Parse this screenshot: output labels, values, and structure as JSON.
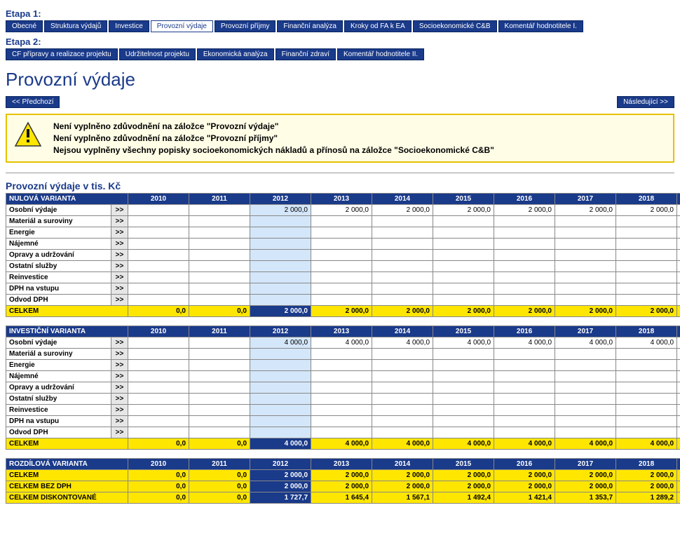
{
  "stage1": {
    "label": "Etapa 1:",
    "tabs": [
      "Obecné",
      "Struktura výdajů",
      "Investice",
      "Provozní výdaje",
      "Provozní příjmy",
      "Finanční analýza",
      "Kroky od FA k EA",
      "Socioekonomické C&B",
      "Komentář hodnotitele I."
    ],
    "activeIndex": 3
  },
  "stage2": {
    "label": "Etapa 2:",
    "tabs": [
      "CF přípravy a realizace projektu",
      "Udržitelnost projektu",
      "Ekonomická analýza",
      "Finanční zdraví",
      "Komentář hodnotitele II."
    ]
  },
  "pageTitle": "Provozní výdaje",
  "nav": {
    "prev": "<< Předchozí",
    "next": "Následující >>"
  },
  "warnings": [
    "Není vyplněno zdůvodnění na záložce \"Provozní výdaje\"",
    "Není vyplněno zdůvodnění na záložce \"Provozní příjmy\"",
    "Nejsou vyplněny všechny popisky socioekonomických nákladů a přínosů na záložce \"Socioekonomické C&B\""
  ],
  "sectionTitle": "Provozní výdaje v tis. Kč",
  "years": [
    "2010",
    "2011",
    "2012",
    "2013",
    "2014",
    "2015",
    "2016",
    "2017",
    "2018",
    "201"
  ],
  "highlightYearIndex": 2,
  "rowCategories": [
    "Osobní výdaje",
    "Materiál a suroviny",
    "Energie",
    "Nájemné",
    "Opravy a udržování",
    "Ostatní služby",
    "Reinvestice",
    "DPH na vstupu",
    "Odvod DPH"
  ],
  "expandLabel": ">>",
  "totalLabel": "CELKEM",
  "tables": {
    "nulova": {
      "header": "NULOVÁ VARIANTA",
      "rows": [
        [
          "",
          "",
          "2 000,0",
          "2 000,0",
          "2 000,0",
          "2 000,0",
          "2 000,0",
          "2 000,0",
          "2 000,0",
          "2"
        ],
        [
          "",
          "",
          "",
          "",
          "",
          "",
          "",
          "",
          "",
          ""
        ],
        [
          "",
          "",
          "",
          "",
          "",
          "",
          "",
          "",
          "",
          ""
        ],
        [
          "",
          "",
          "",
          "",
          "",
          "",
          "",
          "",
          "",
          ""
        ],
        [
          "",
          "",
          "",
          "",
          "",
          "",
          "",
          "",
          "",
          ""
        ],
        [
          "",
          "",
          "",
          "",
          "",
          "",
          "",
          "",
          "",
          ""
        ],
        [
          "",
          "",
          "",
          "",
          "",
          "",
          "",
          "",
          "",
          ""
        ],
        [
          "",
          "",
          "",
          "",
          "",
          "",
          "",
          "",
          "",
          ""
        ],
        [
          "",
          "",
          "",
          "",
          "",
          "",
          "",
          "",
          "",
          ""
        ]
      ],
      "total": [
        "0,0",
        "0,0",
        "2 000,0",
        "2 000,0",
        "2 000,0",
        "2 000,0",
        "2 000,0",
        "2 000,0",
        "2 000,0",
        "2"
      ]
    },
    "investicni": {
      "header": "INVESTIČNÍ VARIANTA",
      "rows": [
        [
          "",
          "",
          "4 000,0",
          "4 000,0",
          "4 000,0",
          "4 000,0",
          "4 000,0",
          "4 000,0",
          "4 000,0",
          "4"
        ],
        [
          "",
          "",
          "",
          "",
          "",
          "",
          "",
          "",
          "",
          ""
        ],
        [
          "",
          "",
          "",
          "",
          "",
          "",
          "",
          "",
          "",
          ""
        ],
        [
          "",
          "",
          "",
          "",
          "",
          "",
          "",
          "",
          "",
          ""
        ],
        [
          "",
          "",
          "",
          "",
          "",
          "",
          "",
          "",
          "",
          ""
        ],
        [
          "",
          "",
          "",
          "",
          "",
          "",
          "",
          "",
          "",
          ""
        ],
        [
          "",
          "",
          "",
          "",
          "",
          "",
          "",
          "",
          "",
          ""
        ],
        [
          "",
          "",
          "",
          "",
          "",
          "",
          "",
          "",
          "",
          ""
        ],
        [
          "",
          "",
          "",
          "",
          "",
          "",
          "",
          "",
          "",
          ""
        ]
      ],
      "total": [
        "0,0",
        "0,0",
        "4 000,0",
        "4 000,0",
        "4 000,0",
        "4 000,0",
        "4 000,0",
        "4 000,0",
        "4 000,0",
        "4"
      ]
    },
    "rozdilova": {
      "header": "ROZDÍLOVÁ VARIANTA",
      "totalsOnly": true,
      "rows": [
        {
          "label": "CELKEM",
          "vals": [
            "0,0",
            "0,0",
            "2 000,0",
            "2 000,0",
            "2 000,0",
            "2 000,0",
            "2 000,0",
            "2 000,0",
            "2 000,0",
            "2"
          ]
        },
        {
          "label": "CELKEM BEZ DPH",
          "vals": [
            "0,0",
            "0,0",
            "2 000,0",
            "2 000,0",
            "2 000,0",
            "2 000,0",
            "2 000,0",
            "2 000,0",
            "2 000,0",
            "2"
          ]
        },
        {
          "label": "CELKEM DISKONTOVANÉ",
          "vals": [
            "0,0",
            "0,0",
            "1 727,7",
            "1 645,4",
            "1 567,1",
            "1 492,4",
            "1 421,4",
            "1 353,7",
            "1 289,2",
            "1"
          ]
        }
      ]
    }
  }
}
